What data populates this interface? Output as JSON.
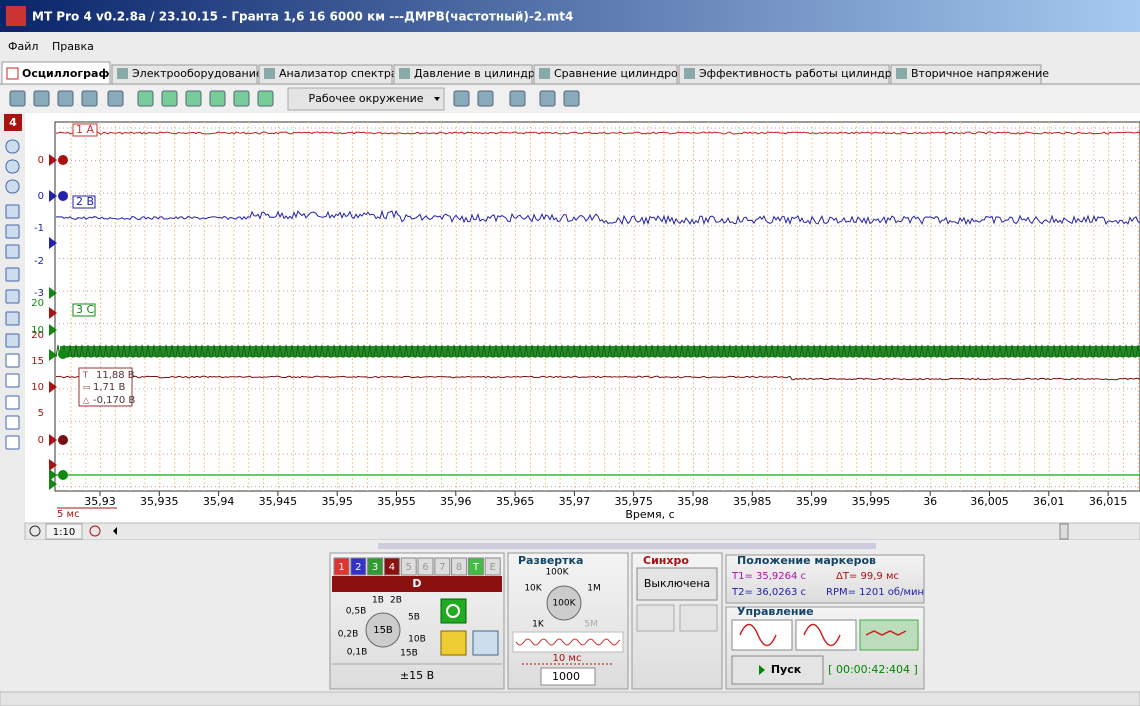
{
  "window": {
    "title": "MT Pro 4 v0.2.8a / 23.10.15 - Гранта 1,6 16 6000 км ---ДМРВ(частотный)-2.mt4"
  },
  "menu": [
    "Файл",
    "Правка"
  ],
  "tabs": [
    "Осциллограф",
    "Электрооборудование",
    "Анализатор спектра",
    "Давление в цилиндре",
    "Сравнение цилиндров",
    "Эффективность работы цилиндров",
    "Вторичное напряжение"
  ],
  "toolbar": {
    "environment": "Рабочее окружение"
  },
  "side_toolbar": {
    "channel": "4"
  },
  "scope": {
    "channels": [
      "1 A",
      "2 B",
      "3 C"
    ],
    "y_labels": [
      "0",
      "0",
      "-1",
      "-2",
      "-3",
      "20",
      "10",
      "20",
      "15",
      "10",
      "5",
      "0"
    ],
    "x_ticks": [
      "35,93",
      "35,935",
      "35,94",
      "35,945",
      "35,95",
      "35,955",
      "35,96",
      "35,965",
      "35,97",
      "35,975",
      "35,98",
      "35,985",
      "35,99",
      "35,995",
      "36",
      "36,005",
      "36,01",
      "36,015"
    ],
    "x_label": "Время, с",
    "scale": "5 мс",
    "readout": [
      "11,88 В",
      "1,71 В",
      "-0,170 В"
    ],
    "zoom": "1:10"
  },
  "channel_panel": {
    "buttons": [
      "1",
      "2",
      "3",
      "4",
      "5",
      "6",
      "7",
      "8",
      "T",
      "E"
    ],
    "name": "D",
    "knob_labels": [
      "1В",
      "2В",
      "0,5В",
      "5В",
      "0,2В",
      "10В",
      "0,1В",
      "15В"
    ],
    "knob_value": "15В",
    "range": "±15 В"
  },
  "sweep": {
    "title": "Развертка",
    "knob_labels": [
      "100K",
      "10K",
      "1M",
      "1K",
      "5M"
    ],
    "knob_value": "100K",
    "period": "10 мс",
    "samples": "1000"
  },
  "sync": {
    "title": "Синхро",
    "mode": "Выключена"
  },
  "markers": {
    "title": "Положение маркеров",
    "t1": "T1= 35,9264 с",
    "dt": "ΔT= 99,9 мс",
    "t2": "T2= 36,0263 с",
    "rpm": "RPM= 1201 об/мин"
  },
  "control": {
    "title": "Управление",
    "start": "Пуск",
    "timer": "[ 00:00:42:404 ]"
  }
}
